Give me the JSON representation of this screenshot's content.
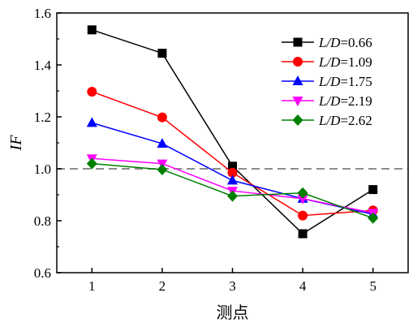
{
  "chart_data": {
    "type": "line",
    "title": "",
    "xlabel": "测点",
    "ylabel": "IF",
    "categories": [
      "1",
      "2",
      "3",
      "4",
      "5"
    ],
    "xlim": [
      0.5,
      5.5
    ],
    "ylim": [
      0.6,
      1.6
    ],
    "yticks": [
      "0.6",
      "0.8",
      "1.0",
      "1.2",
      "1.4",
      "1.6"
    ],
    "reference_line": {
      "y": 1.0,
      "style": "dashed",
      "color": "#8c8c8c"
    },
    "legend_position": "top-right",
    "series": [
      {
        "name": "L/D=0.66",
        "italic_part": "L/D",
        "value_part": "=0.66",
        "color": "#000000",
        "marker": "square",
        "values": [
          1.535,
          1.445,
          1.01,
          0.75,
          0.92
        ]
      },
      {
        "name": "L/D=1.09",
        "italic_part": "L/D",
        "value_part": "=1.09",
        "color": "#ff0000",
        "marker": "circle",
        "values": [
          1.297,
          1.198,
          0.985,
          0.82,
          0.84
        ]
      },
      {
        "name": "L/D=1.75",
        "italic_part": "L/D",
        "value_part": "=1.75",
        "color": "#0000ff",
        "marker": "triangle-up",
        "values": [
          1.177,
          1.097,
          0.955,
          0.885,
          0.825
        ]
      },
      {
        "name": "L/D=2.19",
        "italic_part": "L/D",
        "value_part": "=2.19",
        "color": "#ff00ff",
        "marker": "triangle-down",
        "values": [
          1.04,
          1.02,
          0.915,
          0.885,
          0.83
        ]
      },
      {
        "name": "L/D=2.62",
        "italic_part": "L/D",
        "value_part": "=2.62",
        "color": "#008000",
        "marker": "diamond",
        "values": [
          1.02,
          0.997,
          0.895,
          0.907,
          0.81
        ]
      }
    ]
  }
}
